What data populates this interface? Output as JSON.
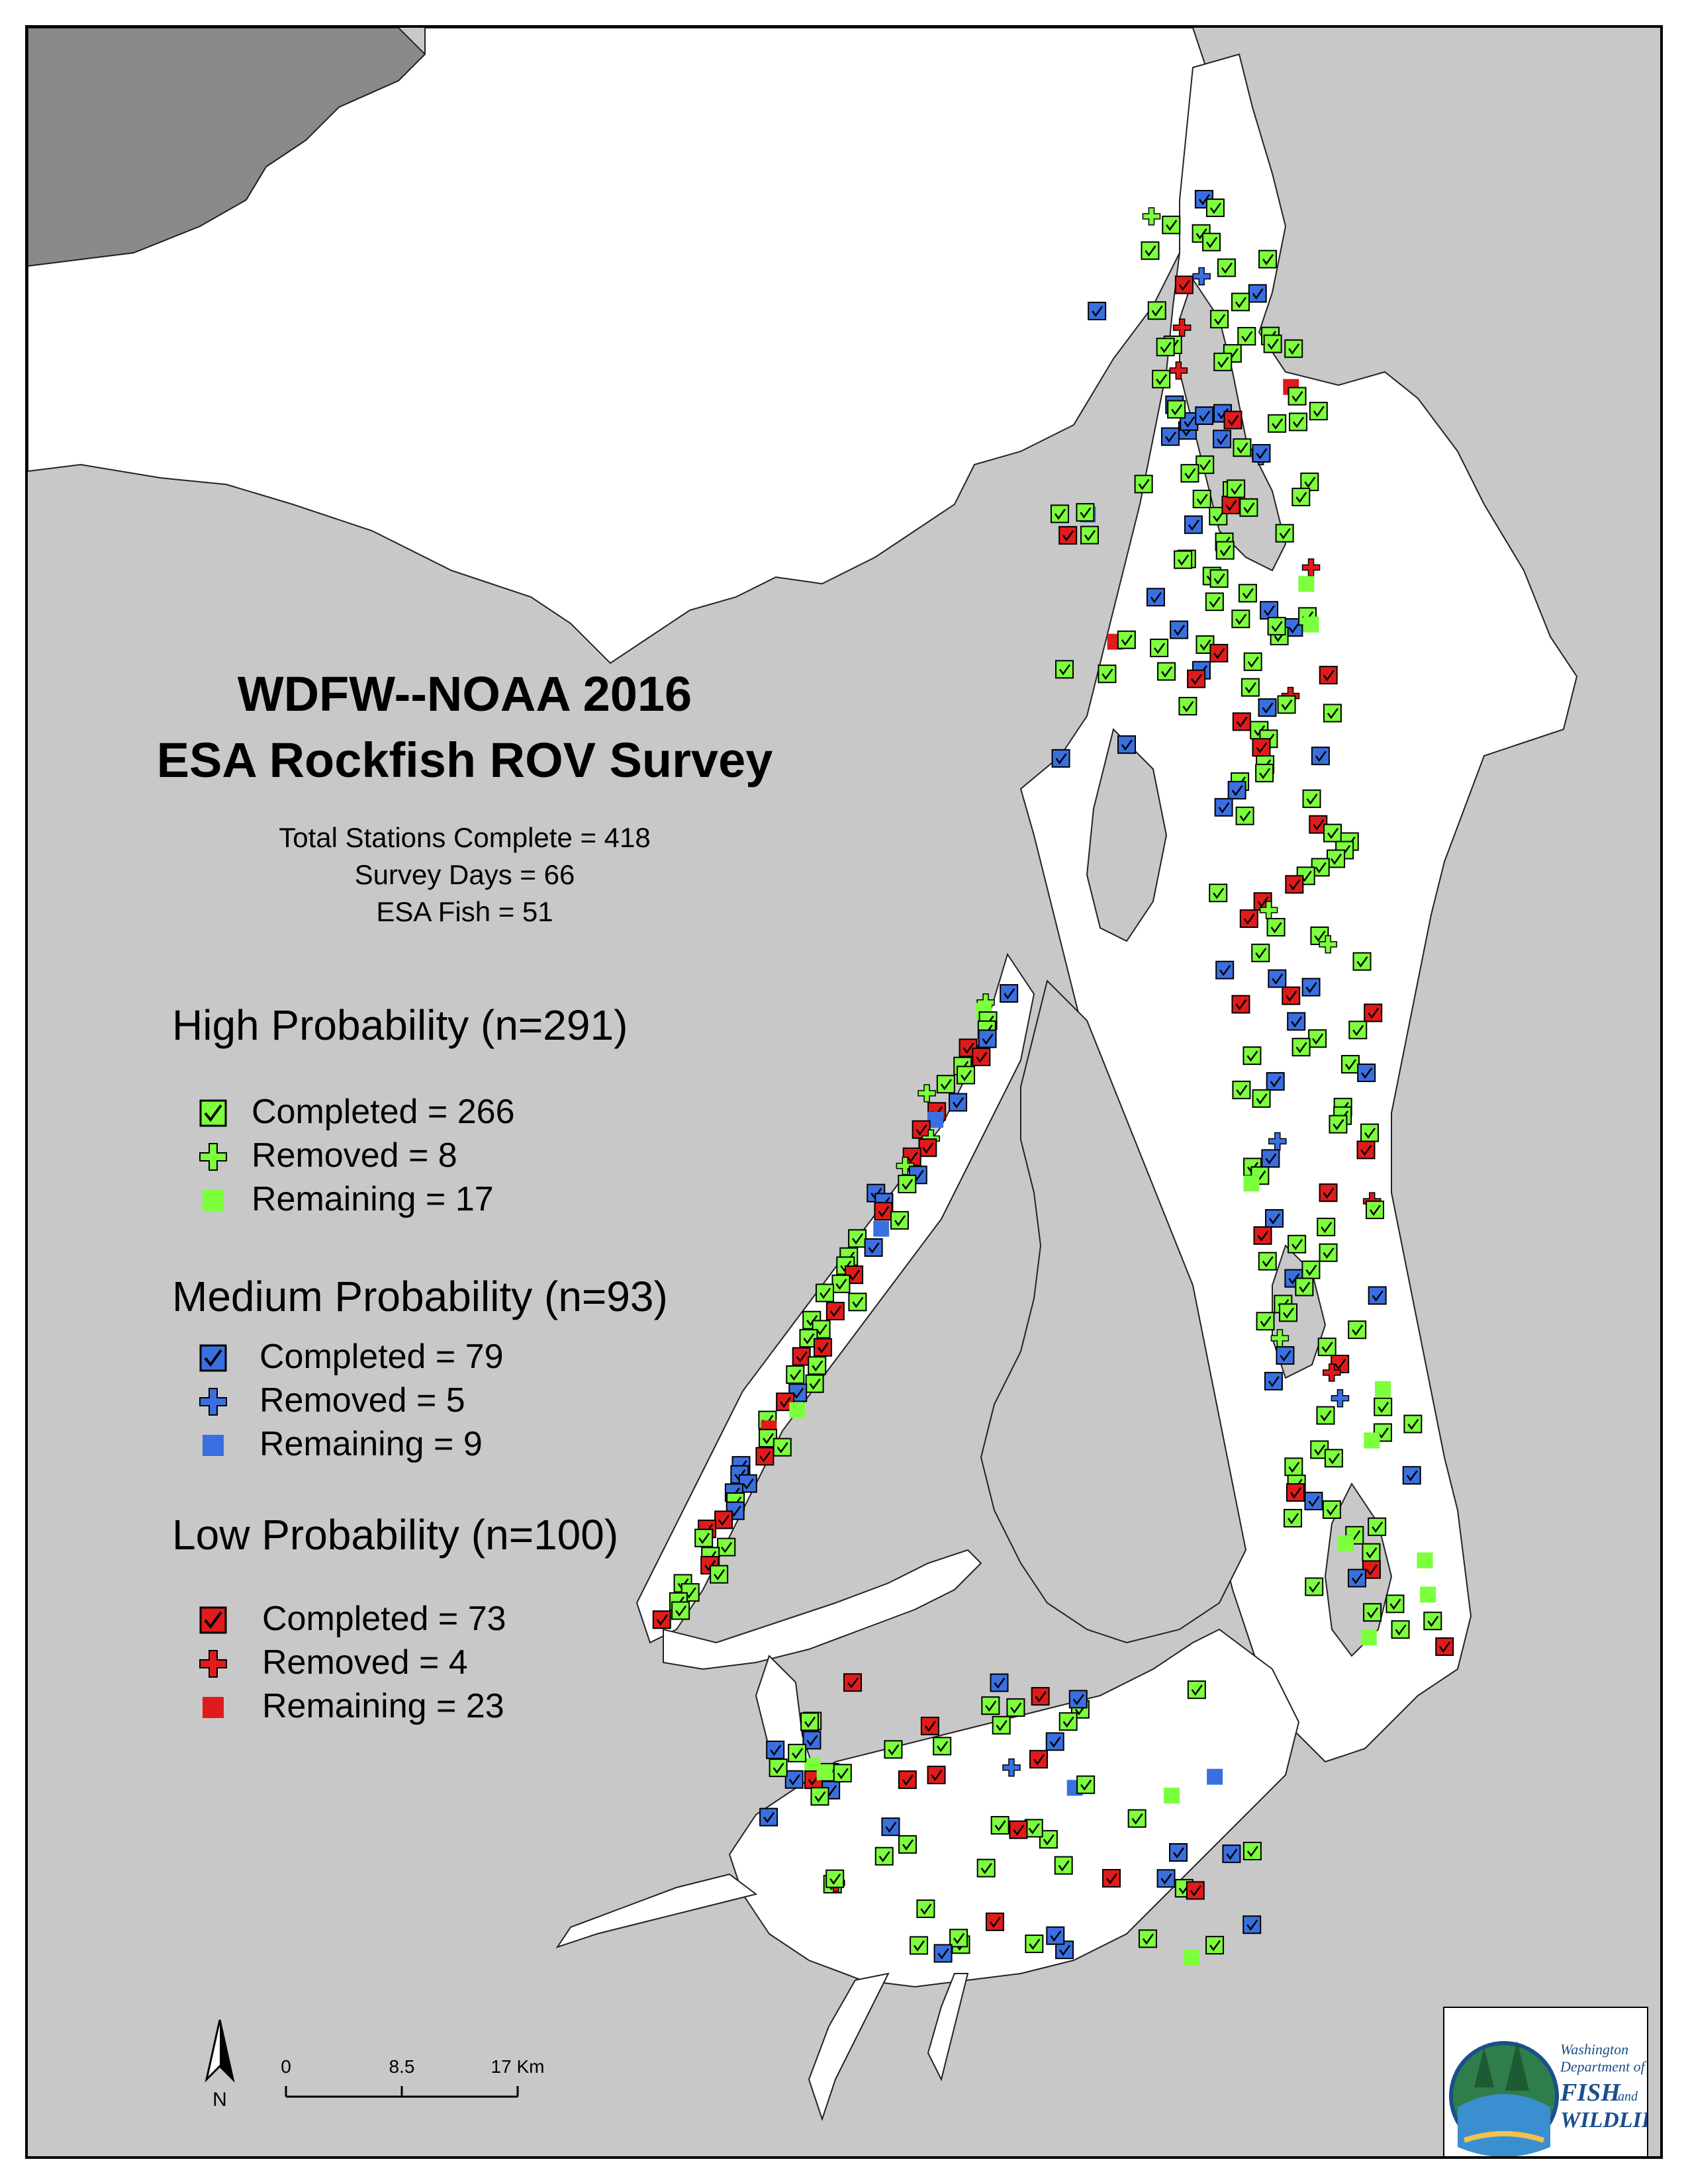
{
  "title": {
    "line1": "WDFW--NOAA 2016",
    "line2": "ESA Rockfish ROV Survey"
  },
  "stats": {
    "total_stations": "Total Stations Complete = 418",
    "survey_days": "Survey Days = 66",
    "esa_fish": "ESA Fish = 51"
  },
  "legend": {
    "high": {
      "heading": "High Probability (n=291)",
      "completed": "Completed = 266",
      "removed": "Removed = 8",
      "remaining": "Remaining = 17",
      "color": "#7cff3c"
    },
    "medium": {
      "heading": "Medium Probability (n=93)",
      "completed": "Completed = 79",
      "removed": "Removed = 5",
      "remaining": "Remaining = 9",
      "color": "#3a6fe0"
    },
    "low": {
      "heading": "Low Probability (n=100)",
      "completed": "Completed = 73",
      "removed": "Removed = 4",
      "remaining": "Remaining = 23",
      "color": "#e01b1b"
    }
  },
  "scale": {
    "ticks": [
      "0",
      "8.5",
      "17 Km"
    ]
  },
  "north_label": "N",
  "logo": {
    "line1": "Washington",
    "line2": "Department of",
    "line3": "FISH",
    "line4": "and",
    "line5": "WILDLIFE"
  },
  "colors": {
    "land": "#c8c8c8",
    "water": "#ffffff",
    "canada_land": "#8a8a8a"
  },
  "icons": {
    "completed": "checkmark-square-icon",
    "removed": "plus-cross-icon",
    "remaining": "filled-square-icon",
    "north": "north-arrow-icon"
  }
}
